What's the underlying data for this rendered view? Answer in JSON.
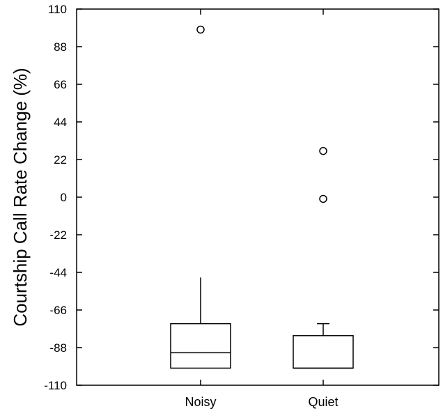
{
  "chart_data": {
    "type": "box",
    "title": "",
    "xlabel": "",
    "ylabel": "Courtship Call Rate Change (%)",
    "ylim": [
      -110,
      110
    ],
    "yticks": [
      110,
      88,
      66,
      44,
      22,
      0,
      -22,
      -44,
      -66,
      -88,
      -110
    ],
    "grid": false,
    "categories": [
      "Noisy",
      "Quiet"
    ],
    "boxes": [
      {
        "name": "Noisy",
        "whisker_low": -100,
        "q1": -100,
        "median": -91,
        "q3": -74,
        "whisker_high": -47,
        "outliers": [
          98
        ]
      },
      {
        "name": "Quiet",
        "whisker_low": -100,
        "q1": -100,
        "median": -100,
        "q3": -81,
        "whisker_high": -74,
        "outliers": [
          27,
          -1
        ]
      }
    ]
  }
}
